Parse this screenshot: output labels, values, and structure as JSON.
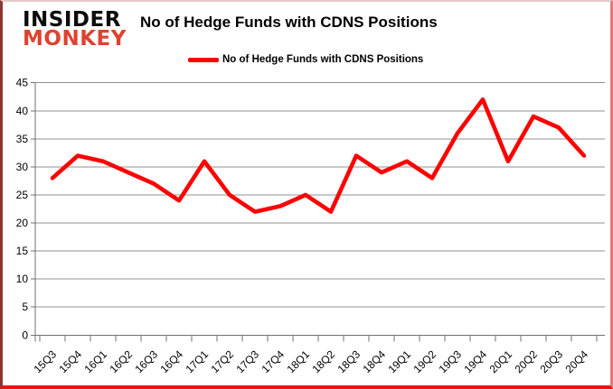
{
  "brand": {
    "line1": "INSIDER",
    "line2": "MONKEY"
  },
  "header": {
    "title": "No of Hedge Funds with CDNS Positions"
  },
  "legend": {
    "label": "No of Hedge Funds with CDNS Positions"
  },
  "colors": {
    "series": "#ff0000",
    "brand_black": "#0d0d0d",
    "brand_red": "#dd4330",
    "gridline": "#909090",
    "axis": "#707070",
    "text": "#000000",
    "background": "#ffffff"
  },
  "chart_data": {
    "type": "line",
    "title": "No of Hedge Funds with CDNS Positions",
    "series_name": "No of Hedge Funds with CDNS Positions",
    "categories": [
      "15Q3",
      "15Q4",
      "16Q1",
      "16Q2",
      "16Q3",
      "16Q4",
      "17Q1",
      "17Q2",
      "17Q3",
      "17Q4",
      "18Q1",
      "18Q2",
      "18Q3",
      "18Q4",
      "19Q1",
      "19Q2",
      "19Q3",
      "19Q4",
      "20Q1",
      "20Q2",
      "20Q3",
      "20Q4"
    ],
    "values": [
      28,
      32,
      31,
      29,
      27,
      24,
      31,
      25,
      22,
      23,
      25,
      22,
      32,
      29,
      31,
      28,
      36,
      42,
      31,
      39,
      37,
      32
    ],
    "ylim": [
      0,
      45
    ],
    "ytick_step": 5,
    "grid": true,
    "legend_position": "top",
    "line_color": "#ff0000",
    "xlabel": "",
    "ylabel": ""
  }
}
